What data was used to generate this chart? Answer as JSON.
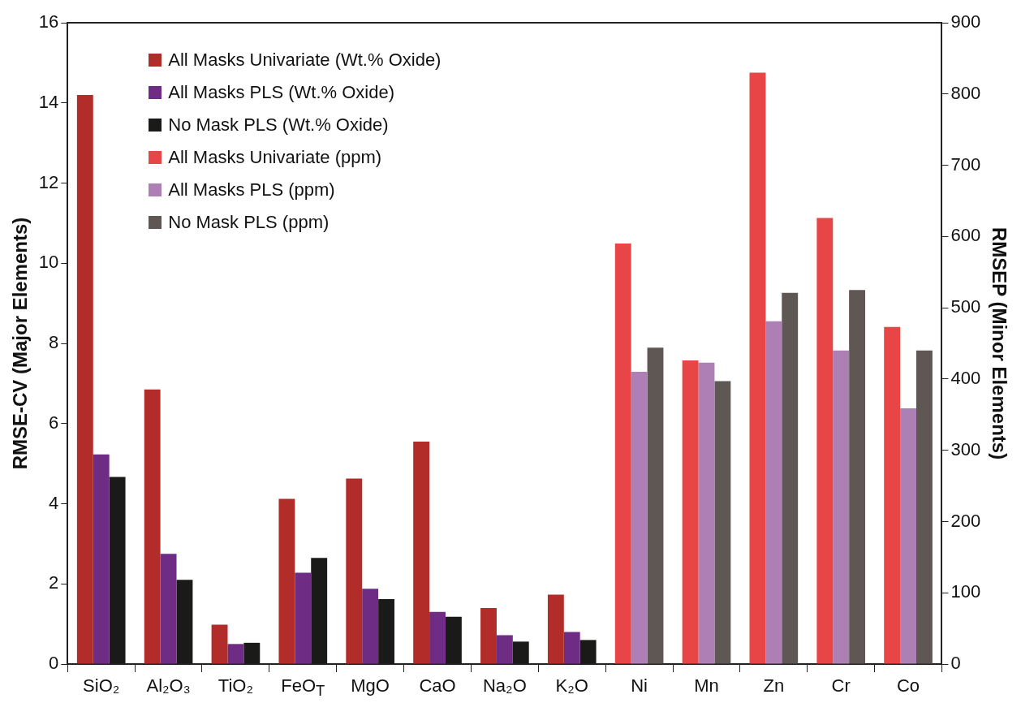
{
  "chart_data": {
    "type": "bar",
    "categories": [
      "SiO₂",
      "Al₂O₃",
      "TiO₂",
      "FeO$_{T}$",
      "MgO",
      "CaO",
      "Na₂O",
      "K₂O",
      "Ni",
      "Mn",
      "Zn",
      "Cr",
      "Co"
    ],
    "series": [
      {
        "name": "All Masks Univariate (Wt.% Oxide)",
        "color": "#b22c2a",
        "axis": "y",
        "values": [
          14.2,
          6.85,
          0.98,
          4.12,
          4.63,
          5.55,
          1.4,
          1.73,
          null,
          null,
          null,
          null,
          null
        ]
      },
      {
        "name": "All Masks PLS (Wt.% Oxide)",
        "color": "#6f2c85",
        "axis": "y",
        "values": [
          5.23,
          2.75,
          0.5,
          2.28,
          1.88,
          1.3,
          0.72,
          0.8,
          null,
          null,
          null,
          null,
          null
        ]
      },
      {
        "name": "No Mask PLS (Wt.% Oxide)",
        "color": "#1a1a18",
        "axis": "y",
        "values": [
          4.67,
          2.1,
          0.53,
          2.65,
          1.62,
          1.18,
          0.56,
          0.6,
          null,
          null,
          null,
          null,
          null
        ]
      },
      {
        "name": "All Masks Univariate (ppm)",
        "color": "#e84646",
        "axis": "y2",
        "values": [
          null,
          null,
          null,
          null,
          null,
          null,
          null,
          null,
          590,
          426,
          830,
          626,
          473
        ]
      },
      {
        "name": "All Masks PLS (ppm)",
        "color": "#ad7fb5",
        "axis": "y2",
        "values": [
          null,
          null,
          null,
          null,
          null,
          null,
          null,
          null,
          410,
          423,
          481,
          440,
          359
        ]
      },
      {
        "name": "No Mask PLS (ppm)",
        "color": "#5f5753",
        "axis": "y2",
        "values": [
          null,
          null,
          null,
          null,
          null,
          null,
          null,
          null,
          444,
          397,
          521,
          525,
          440
        ]
      }
    ],
    "ylabel": "RMSE-CV (Major Elements)",
    "y2label": "RMSEP (Minor Elements)",
    "ylim": [
      0,
      16
    ],
    "yticks": [
      0,
      2,
      4,
      6,
      8,
      10,
      12,
      14,
      16
    ],
    "y2lim": [
      0,
      900
    ],
    "y2ticks": [
      0,
      100,
      200,
      300,
      400,
      500,
      600,
      700,
      800,
      900
    ],
    "legend": "top left",
    "grid": false
  }
}
